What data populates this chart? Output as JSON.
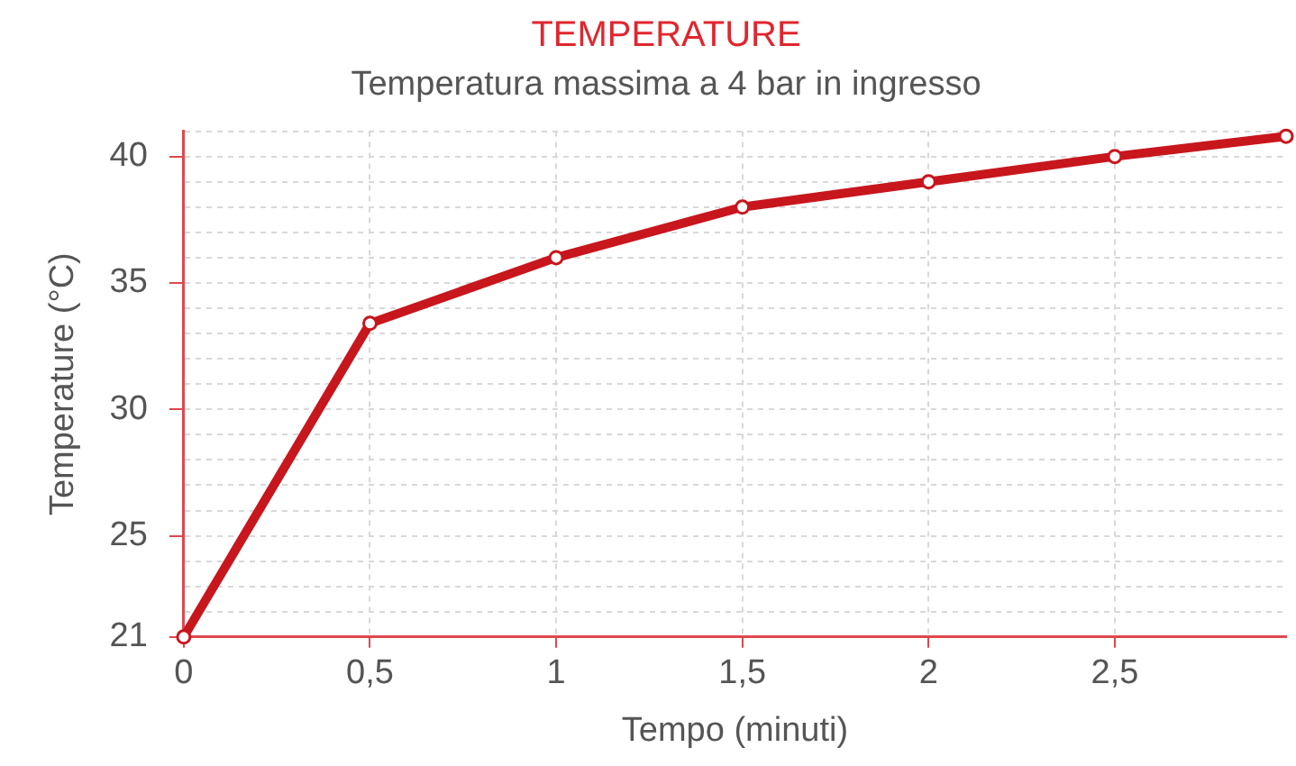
{
  "chart_data": {
    "type": "line",
    "title": "TEMPERATURE",
    "subtitle": "Temperatura massima a 4 bar in ingresso",
    "xlabel": "Tempo (minuti)",
    "ylabel": "Temperature (°C)",
    "x": [
      0,
      0.5,
      1,
      1.5,
      2,
      2.5,
      2.96
    ],
    "series": [
      {
        "color": "#c8161d",
        "values": [
          21,
          33.4,
          36,
          38,
          39,
          40,
          40.8
        ]
      }
    ],
    "xlim": [
      0,
      2.96
    ],
    "xticks": [
      0,
      {
        "value": 0.5,
        "label": "0,5"
      },
      1,
      {
        "value": 1.5,
        "label": "1,5"
      },
      2,
      {
        "value": 2.5,
        "label": "2,5"
      }
    ],
    "ylim": [
      21,
      41
    ],
    "yticks": [
      21,
      {
        "value": 22,
        "label": null
      },
      {
        "value": 23,
        "label": null
      },
      {
        "value": 24,
        "label": null
      },
      25,
      {
        "value": 26,
        "label": null
      },
      {
        "value": 27,
        "label": null
      },
      {
        "value": 28,
        "label": null
      },
      {
        "value": 29,
        "label": null
      },
      30,
      {
        "value": 31,
        "label": null
      },
      {
        "value": 32,
        "label": null
      },
      {
        "value": 33,
        "label": null
      },
      {
        "value": 34,
        "label": null
      },
      35,
      {
        "value": 36,
        "label": null
      },
      {
        "value": 37,
        "label": null
      },
      {
        "value": 38,
        "label": null
      },
      {
        "value": 39,
        "label": null
      },
      40,
      {
        "value": 41,
        "label": null
      }
    ],
    "grid": true,
    "legend": false,
    "marker": "circle",
    "line_style": "solid"
  }
}
